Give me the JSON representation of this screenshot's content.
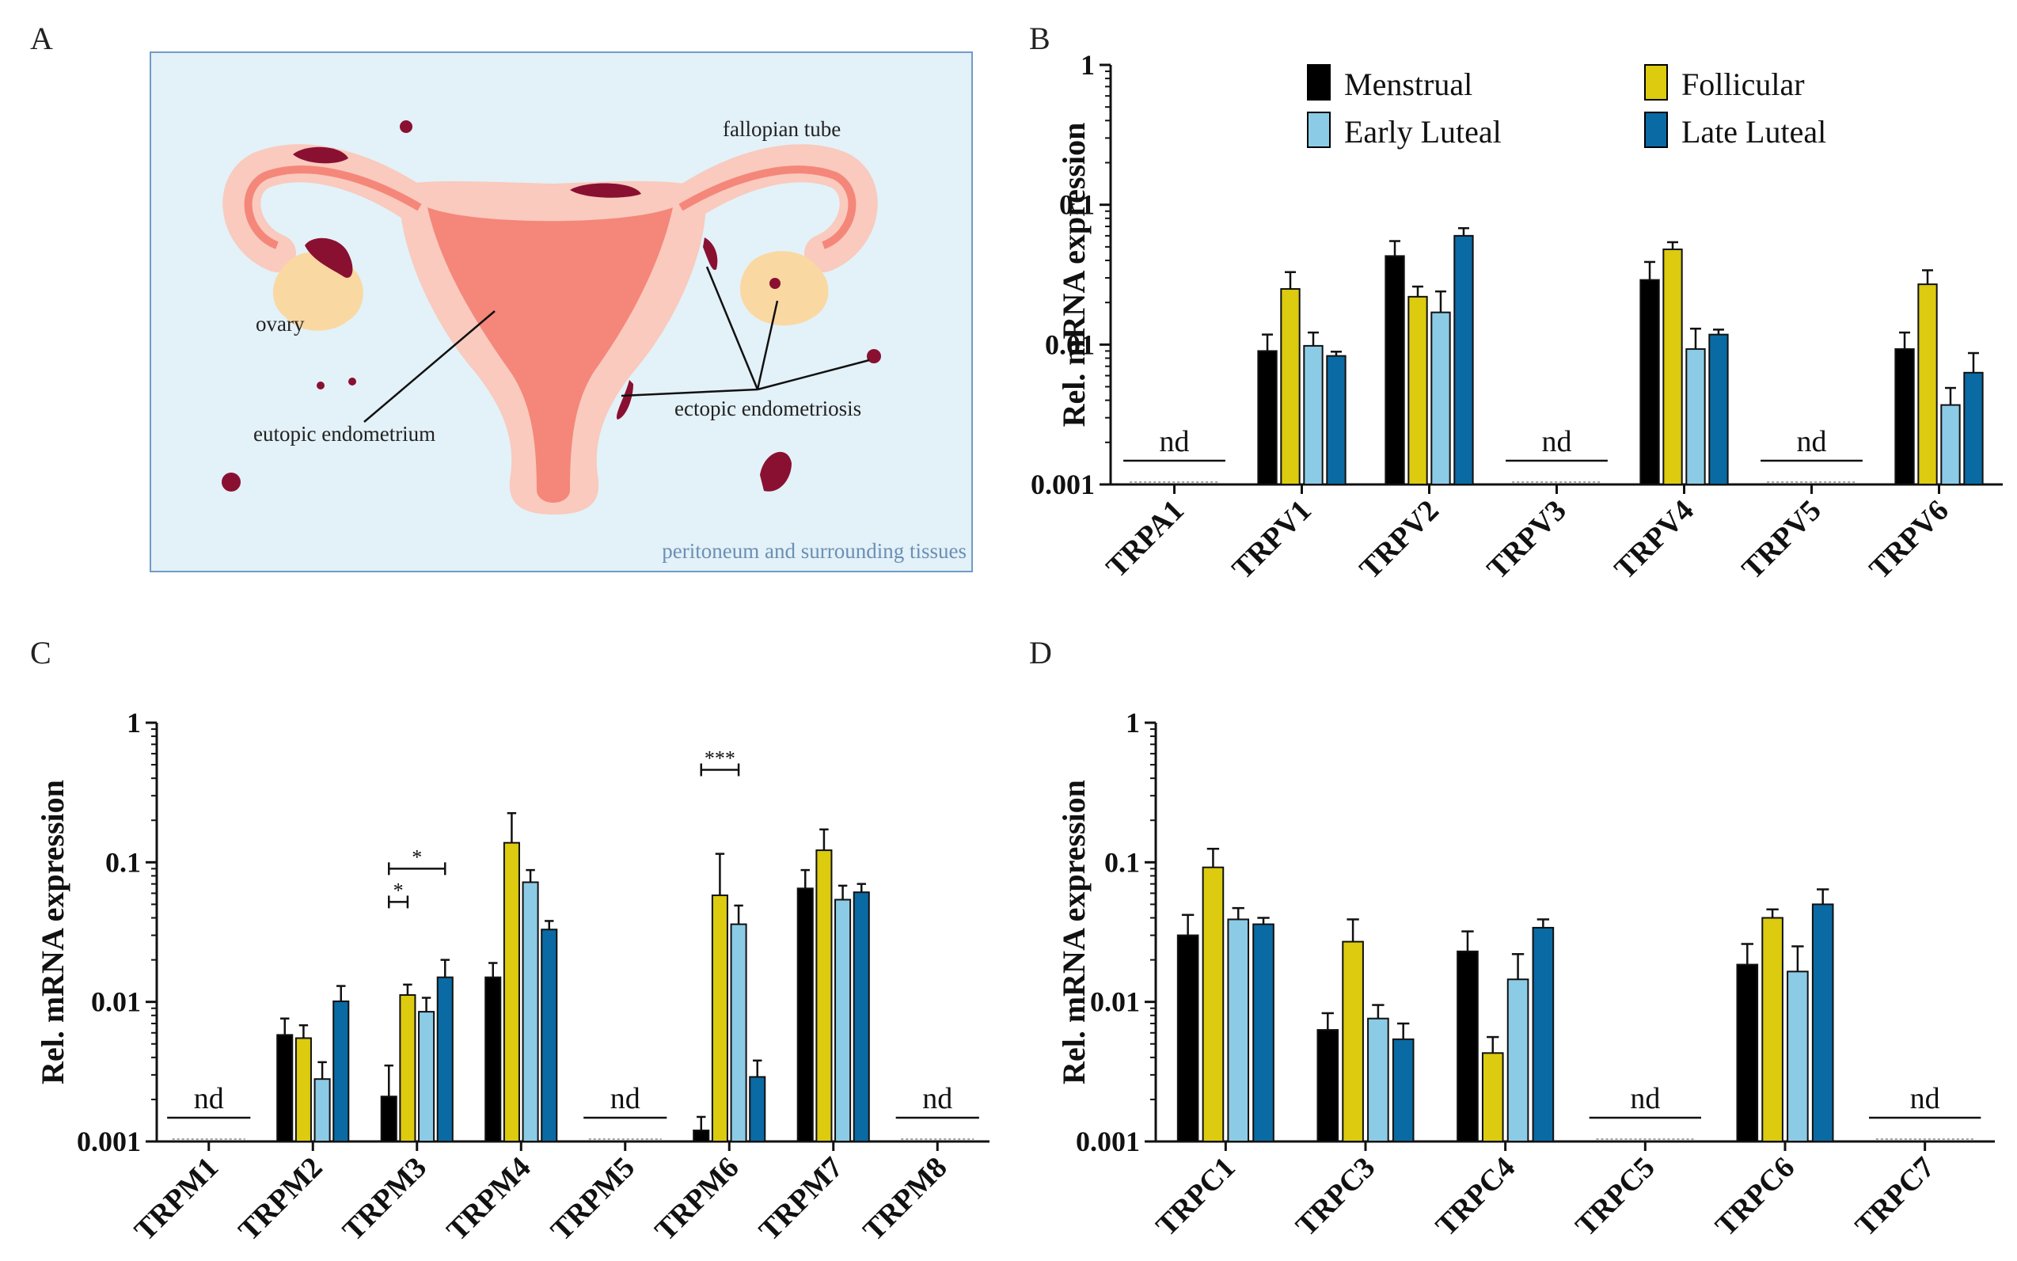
{
  "panels": {
    "a": "A",
    "b": "B",
    "c": "C",
    "d": "D"
  },
  "diagram": {
    "labels": {
      "fallopian_tube": "fallopian tube",
      "ovary": "ovary",
      "eutopic": "eutopic endometrium",
      "ectopic": "ectopic endometriosis",
      "caption": "peritoneum and surrounding tissues"
    },
    "colors": {
      "background": "#e3f1f8",
      "border": "#6f9cc8",
      "uterus": "#f9cabd",
      "endometrium": "#f4877a",
      "lesion": "#8a1032",
      "ovary": "#fad8a1"
    }
  },
  "legend": {
    "items": [
      {
        "label": "Menstrual",
        "color": "#000000"
      },
      {
        "label": "Follicular",
        "color": "#dccb0e"
      },
      {
        "label": "Early Luteal",
        "color": "#8ccbe6"
      },
      {
        "label": "Late Luteal",
        "color": "#0a6aa3"
      }
    ]
  },
  "chart_data": [
    {
      "id": "B",
      "type": "bar",
      "scale": "log",
      "ylabel": "Rel. mRNA expression",
      "ylim": [
        0.001,
        1
      ],
      "yticks": [
        "0.001",
        "0.01",
        "0.1",
        "1"
      ],
      "nd_label": "nd",
      "categories": [
        "TRPA1",
        "TRPV1",
        "TRPV2",
        "TRPV3",
        "TRPV4",
        "TRPV5",
        "TRPV6"
      ],
      "series": [
        {
          "name": "Menstrual",
          "values": [
            null,
            0.009,
            0.043,
            null,
            0.029,
            null,
            0.0093
          ],
          "errors": [
            null,
            0.0118,
            0.055,
            null,
            0.039,
            null,
            0.0122
          ]
        },
        {
          "name": "Follicular",
          "values": [
            null,
            0.025,
            0.022,
            null,
            0.048,
            null,
            0.027
          ],
          "errors": [
            null,
            0.033,
            0.026,
            null,
            0.054,
            null,
            0.034
          ]
        },
        {
          "name": "Early Luteal",
          "values": [
            null,
            0.0098,
            0.017,
            null,
            0.0093,
            null,
            0.0037
          ],
          "errors": [
            null,
            0.0122,
            0.024,
            null,
            0.013,
            null,
            0.0049
          ]
        },
        {
          "name": "Late Luteal",
          "values": [
            null,
            0.0083,
            0.06,
            null,
            0.0118,
            null,
            0.0063
          ],
          "errors": [
            null,
            0.0089,
            0.068,
            null,
            0.0128,
            null,
            0.0087
          ]
        }
      ],
      "significance": []
    },
    {
      "id": "C",
      "type": "bar",
      "scale": "log",
      "ylabel": "Rel. mRNA expression",
      "ylim": [
        0.001,
        1
      ],
      "yticks": [
        "0.001",
        "0.01",
        "0.1",
        "1"
      ],
      "nd_label": "nd",
      "categories": [
        "TRPM1",
        "TRPM2",
        "TRPM3",
        "TRPM4",
        "TRPM5",
        "TRPM6",
        "TRPM7",
        "TRPM8"
      ],
      "series": [
        {
          "name": "Menstrual",
          "values": [
            null,
            0.0058,
            0.0021,
            0.015,
            null,
            0.0012,
            0.065,
            null
          ],
          "errors": [
            null,
            0.0076,
            0.0035,
            0.019,
            null,
            0.0015,
            0.088,
            null
          ]
        },
        {
          "name": "Follicular",
          "values": [
            null,
            0.0055,
            0.0112,
            0.138,
            null,
            0.058,
            0.122,
            null
          ],
          "errors": [
            null,
            0.0068,
            0.0133,
            0.225,
            null,
            0.115,
            0.172,
            null
          ]
        },
        {
          "name": "Early Luteal",
          "values": [
            null,
            0.0028,
            0.0085,
            0.072,
            null,
            0.036,
            0.054,
            null
          ],
          "errors": [
            null,
            0.0037,
            0.0107,
            0.088,
            null,
            0.049,
            0.068,
            null
          ]
        },
        {
          "name": "Late Luteal",
          "values": [
            null,
            0.0101,
            0.015,
            0.033,
            null,
            0.0029,
            0.061,
            null
          ],
          "errors": [
            null,
            0.013,
            0.02,
            0.038,
            null,
            0.0038,
            0.07,
            null
          ]
        }
      ],
      "significance": [
        {
          "category": 2,
          "from": 0,
          "to": 1,
          "level": 0.052,
          "label": "*"
        },
        {
          "category": 2,
          "from": 0,
          "to": 3,
          "level": 0.09,
          "label": "*"
        },
        {
          "category": 5,
          "from": 0,
          "to": 2,
          "level": 0.46,
          "label": "***"
        }
      ]
    },
    {
      "id": "D",
      "type": "bar",
      "scale": "log",
      "ylabel": "Rel. mRNA expression",
      "ylim": [
        0.001,
        1
      ],
      "yticks": [
        "0.001",
        "0.01",
        "0.1",
        "1"
      ],
      "nd_label": "nd",
      "categories": [
        "TRPC1",
        "TRPC3",
        "TRPC4",
        "TRPC5",
        "TRPC6",
        "TRPC7"
      ],
      "series": [
        {
          "name": "Menstrual",
          "values": [
            0.03,
            0.0063,
            0.023,
            null,
            0.0185,
            null
          ],
          "errors": [
            0.042,
            0.0083,
            0.032,
            null,
            0.026,
            null
          ]
        },
        {
          "name": "Follicular",
          "values": [
            0.092,
            0.027,
            0.0043,
            null,
            0.04,
            null
          ],
          "errors": [
            0.125,
            0.039,
            0.0056,
            null,
            0.046,
            null
          ]
        },
        {
          "name": "Early Luteal",
          "values": [
            0.039,
            0.0076,
            0.0145,
            null,
            0.0165,
            null
          ],
          "errors": [
            0.047,
            0.0095,
            0.022,
            null,
            0.025,
            null
          ]
        },
        {
          "name": "Late Luteal",
          "values": [
            0.036,
            0.0054,
            0.034,
            null,
            0.05,
            null
          ],
          "errors": [
            0.04,
            0.007,
            0.039,
            null,
            0.064,
            null
          ]
        }
      ],
      "significance": []
    }
  ]
}
